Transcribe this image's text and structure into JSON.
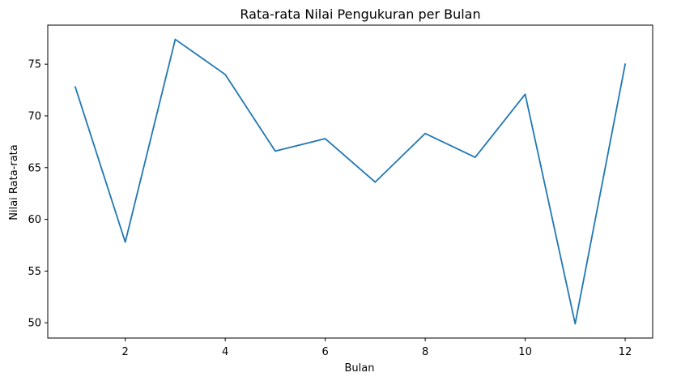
{
  "chart_data": {
    "type": "line",
    "title": "Rata-rata Nilai Pengukuran per Bulan",
    "xlabel": "Bulan",
    "ylabel": "Nilai Rata-rata",
    "x": [
      1,
      2,
      3,
      4,
      5,
      6,
      7,
      8,
      9,
      10,
      11,
      12
    ],
    "series": [
      {
        "values": [
          72.8,
          57.8,
          77.4,
          74.0,
          66.6,
          67.8,
          63.6,
          68.3,
          66.0,
          72.1,
          49.9,
          75.0
        ],
        "color": "#1f77b4"
      }
    ],
    "xlim": [
      0.45,
      12.55
    ],
    "ylim": [
      48.525,
      78.775
    ],
    "xticks": [
      2,
      4,
      6,
      8,
      10,
      12
    ],
    "xtick_labels": [
      "2",
      "4",
      "6",
      "8",
      "10",
      "12"
    ],
    "yticks": [
      50,
      55,
      60,
      65,
      70,
      75
    ],
    "ytick_labels": [
      "50",
      "55",
      "60",
      "65",
      "70",
      "75"
    ],
    "grid": false,
    "legend": "none"
  }
}
